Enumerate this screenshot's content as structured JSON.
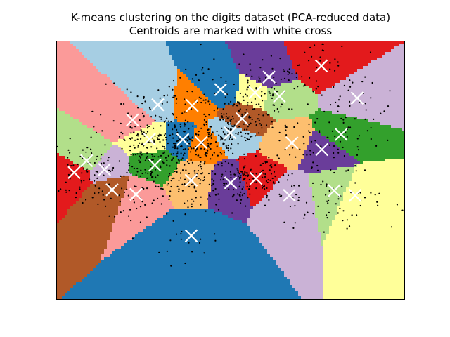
{
  "chart_data": {
    "type": "scatter",
    "title": "K-means clustering on the digits dataset (PCA-reduced data)",
    "subtitle": "Centroids are marked with white cross",
    "xlabel": "",
    "ylabel": "",
    "xlim": [
      -30,
      40
    ],
    "ylim": [
      -30,
      40
    ],
    "show_ticks": false,
    "grid": false,
    "legend": "none",
    "colors": {
      "point": "#000000",
      "centroid": "#ffffff",
      "frame": "#000000",
      "background": "#ffffff"
    },
    "region_colors": [
      "#6a3d9a",
      "#e31a1c",
      "#cab2d6",
      "#b2df8a",
      "#ffff99",
      "#1f78b4",
      "#ff7f00",
      "#a6cee3",
      "#fb9a99",
      "#b15928",
      "#33a02c",
      "#fdbf6f"
    ],
    "centroids": [
      {
        "x": 12.7,
        "y": 30.2
      },
      {
        "x": 23.2,
        "y": 33.2
      },
      {
        "x": 30.4,
        "y": 24.5
      },
      {
        "x": 14.8,
        "y": 25.0
      },
      {
        "x": 9.9,
        "y": 26.0
      },
      {
        "x": 3.0,
        "y": 26.8
      },
      {
        "x": -2.7,
        "y": 22.5
      },
      {
        "x": -9.6,
        "y": 22.7
      },
      {
        "x": -14.7,
        "y": 18.6
      },
      {
        "x": 7.3,
        "y": 18.9
      },
      {
        "x": 27.2,
        "y": 14.7
      },
      {
        "x": 17.3,
        "y": 12.4
      },
      {
        "x": 23.3,
        "y": 10.6
      },
      {
        "x": -26.4,
        "y": 4.4
      },
      {
        "x": -20.3,
        "y": 5.2
      },
      {
        "x": -23.9,
        "y": 7.6
      },
      {
        "x": -11.3,
        "y": 13.4
      },
      {
        "x": -4.6,
        "y": 13.3
      },
      {
        "x": -0.9,
        "y": 12.5
      },
      {
        "x": 4.9,
        "y": 15.1
      },
      {
        "x": -14.0,
        "y": -1.5
      },
      {
        "x": -18.8,
        "y": -0.3
      },
      {
        "x": -10.2,
        "y": 6.4
      },
      {
        "x": -2.9,
        "y": 2.3
      },
      {
        "x": 5.0,
        "y": 1.6
      },
      {
        "x": 10.1,
        "y": 2.8
      },
      {
        "x": 16.8,
        "y": -1.8
      },
      {
        "x": 25.8,
        "y": -0.5
      },
      {
        "x": 30.0,
        "y": -1.8
      },
      {
        "x": -2.9,
        "y": -12.7
      }
    ]
  }
}
